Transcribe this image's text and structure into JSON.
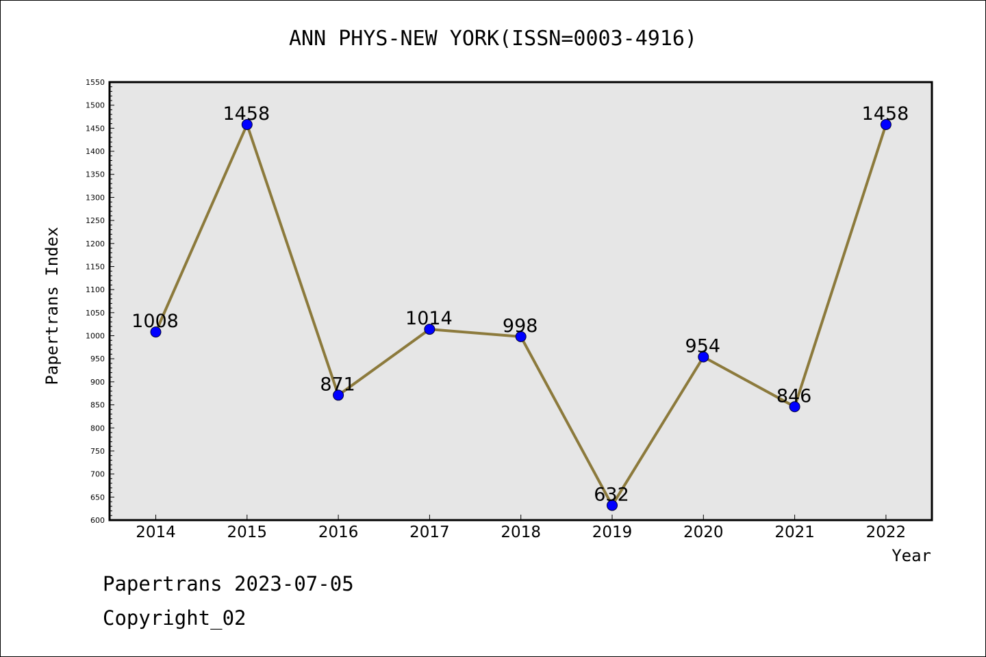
{
  "chart_data": {
    "type": "line",
    "title": "ANN PHYS-NEW YORK(ISSN=0003-4916)",
    "xlabel": "Year",
    "ylabel": "Papertrans Index",
    "categories": [
      "2014",
      "2015",
      "2016",
      "2017",
      "2018",
      "2019",
      "2020",
      "2021",
      "2022"
    ],
    "series": [
      {
        "values": [
          1008,
          1458,
          871,
          1014,
          998,
          632,
          954,
          846,
          1458
        ]
      }
    ],
    "ylim": [
      600,
      1550
    ],
    "yticks": [
      600,
      650,
      700,
      750,
      800,
      850,
      900,
      950,
      1000,
      1050,
      1100,
      1150,
      1200,
      1250,
      1300,
      1350,
      1400,
      1450,
      1500,
      1550
    ],
    "grid": false,
    "line_color": "#8c7a3c",
    "marker_color": "#0000ff",
    "plot_background": "#e6e6e6"
  },
  "footer": {
    "date_line": "Papertrans 2023-07-05",
    "copyright": "Copyright_02"
  }
}
